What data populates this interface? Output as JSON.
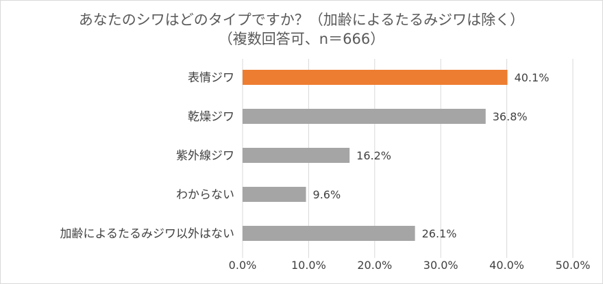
{
  "chart_data": {
    "type": "bar",
    "orientation": "horizontal",
    "title": "あなたのシワはどのタイプですか？（加齢によるたるみジワは除く）",
    "subtitle": "（複数回答可、n＝666）",
    "categories": [
      "表情ジワ",
      "乾燥ジワ",
      "紫外線ジワ",
      "わからない",
      "加齢によるたるみジワ以外はない"
    ],
    "values": [
      40.1,
      36.8,
      16.2,
      9.6,
      26.1
    ],
    "value_labels": [
      "40.1%",
      "36.8%",
      "16.2%",
      "9.6%",
      "26.1%"
    ],
    "xlim": [
      0,
      50
    ],
    "xticks": [
      "0.0%",
      "10.0%",
      "20.0%",
      "30.0%",
      "40.0%",
      "50.0%"
    ],
    "xlabel": "",
    "ylabel": "",
    "grid": true,
    "legend": "none",
    "colors": {
      "highlight": "#ED7D31",
      "default": "#A5A5A5"
    },
    "highlight_index": 0
  }
}
